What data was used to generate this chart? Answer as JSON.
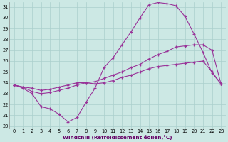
{
  "xlabel": "Windchill (Refroidissement éolien,°C)",
  "bg_color": "#cce8e4",
  "grid_color": "#aacfcc",
  "line_color": "#993399",
  "xmin": 0,
  "xmax": 23,
  "ymin": 20,
  "ymax": 31,
  "yticks": [
    20,
    21,
    22,
    23,
    24,
    25,
    26,
    27,
    28,
    29,
    30,
    31
  ],
  "xticks": [
    0,
    1,
    2,
    3,
    4,
    5,
    6,
    7,
    8,
    9,
    10,
    11,
    12,
    13,
    14,
    15,
    16,
    17,
    18,
    19,
    20,
    21,
    22,
    23
  ],
  "series1_x": [
    0,
    1,
    2,
    3,
    4,
    5,
    6,
    7,
    8,
    9,
    10,
    11,
    12,
    13,
    14,
    15,
    16,
    17,
    18,
    19,
    20,
    21,
    22,
    23
  ],
  "series1_y": [
    23.8,
    23.5,
    23.0,
    21.8,
    21.6,
    21.1,
    20.4,
    20.8,
    22.2,
    23.5,
    25.4,
    26.3,
    27.5,
    28.7,
    30.0,
    31.2,
    31.4,
    31.3,
    31.1,
    30.1,
    28.5,
    26.8,
    24.9,
    23.9
  ],
  "series2_x": [
    0,
    1,
    2,
    3,
    4,
    5,
    6,
    7,
    8,
    9,
    10,
    11,
    12,
    13,
    14,
    15,
    16,
    17,
    18,
    19,
    20,
    21,
    22,
    23
  ],
  "series2_y": [
    23.8,
    23.6,
    23.5,
    23.3,
    23.4,
    23.6,
    23.8,
    24.0,
    24.0,
    24.1,
    24.4,
    24.7,
    25.0,
    25.4,
    25.7,
    26.2,
    26.6,
    26.9,
    27.3,
    27.4,
    27.5,
    27.5,
    27.0,
    23.9
  ],
  "series3_x": [
    0,
    1,
    2,
    3,
    4,
    5,
    6,
    7,
    8,
    9,
    10,
    11,
    12,
    13,
    14,
    15,
    16,
    17,
    18,
    19,
    20,
    21,
    22,
    23
  ],
  "series3_y": [
    23.8,
    23.6,
    23.2,
    23.0,
    23.1,
    23.3,
    23.5,
    23.8,
    24.0,
    23.9,
    24.0,
    24.2,
    24.5,
    24.7,
    25.0,
    25.3,
    25.5,
    25.6,
    25.7,
    25.8,
    25.9,
    26.0,
    25.0,
    23.9
  ]
}
